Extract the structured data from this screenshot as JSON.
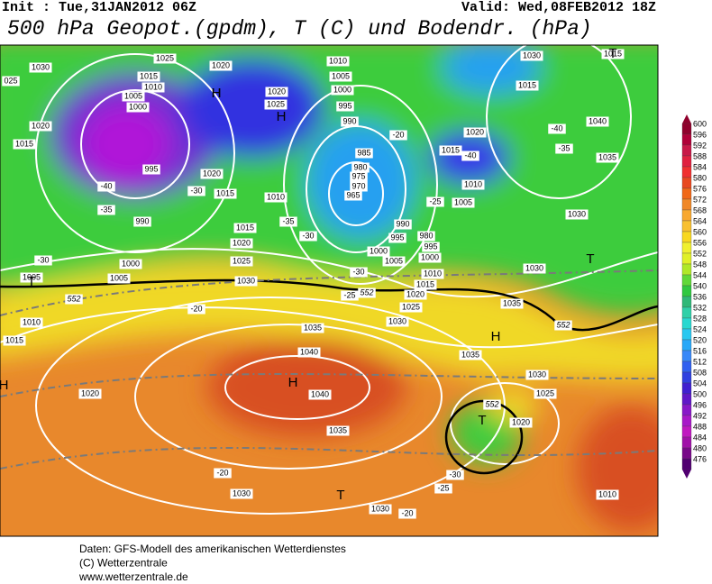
{
  "header": {
    "init": "Init : Tue,31JAN2012 06Z",
    "valid": "Valid: Wed,08FEB2012 18Z",
    "title": "500 hPa Geopot.(gpdm), T (C) und Bodendr. (hPa)"
  },
  "map_labels": [
    "1030",
    "1025",
    "1020",
    "1015",
    "1010",
    "1005",
    "1000",
    "H",
    "1020",
    "1015",
    "995",
    "-40",
    "-35",
    "990",
    "1010",
    "1005",
    "1000",
    "995",
    "990",
    "985",
    "980",
    "975",
    "970",
    "965",
    "H",
    "1020",
    "1025",
    "1020",
    "1015",
    "1010",
    "1015",
    "1020",
    "1025",
    "1030",
    "-30",
    "1000",
    "1005",
    "1005",
    "1010",
    "1015",
    "-20",
    "1020",
    "1035",
    "1040",
    "H",
    "1040",
    "1035",
    "-20",
    "1030",
    "T",
    "1030",
    "-20",
    "-25",
    "-30",
    "T",
    "1020",
    "1025",
    "1030",
    "1035",
    "H",
    "1035",
    "1030",
    "T",
    "1030",
    "1035",
    "1040",
    "-40",
    "-35",
    "1030",
    "1015",
    "1015",
    "1020",
    "-40",
    "1010",
    "1005",
    "-25",
    "-20",
    "990",
    "995",
    "980",
    "995",
    "1000",
    "1000",
    "1005",
    "1010",
    "1015",
    "1020",
    "1025",
    "1030",
    "-30",
    "-25",
    "552",
    "552",
    "552",
    "552",
    "1010",
    "H",
    "T",
    "-30",
    "-35",
    "-30",
    "H",
    "1015",
    "T",
    "025"
  ],
  "colorbar": {
    "labels": [
      600,
      596,
      592,
      588,
      584,
      580,
      576,
      572,
      568,
      564,
      560,
      556,
      552,
      548,
      544,
      540,
      536,
      532,
      528,
      524,
      520,
      516,
      512,
      508,
      504,
      500,
      496,
      492,
      488,
      484,
      480,
      476
    ]
  },
  "footer": [
    "Daten: GFS-Modell des amerikanischen Wetterdienstes",
    "(C) Wetterzentrale",
    "www.wetterzentrale.de"
  ]
}
